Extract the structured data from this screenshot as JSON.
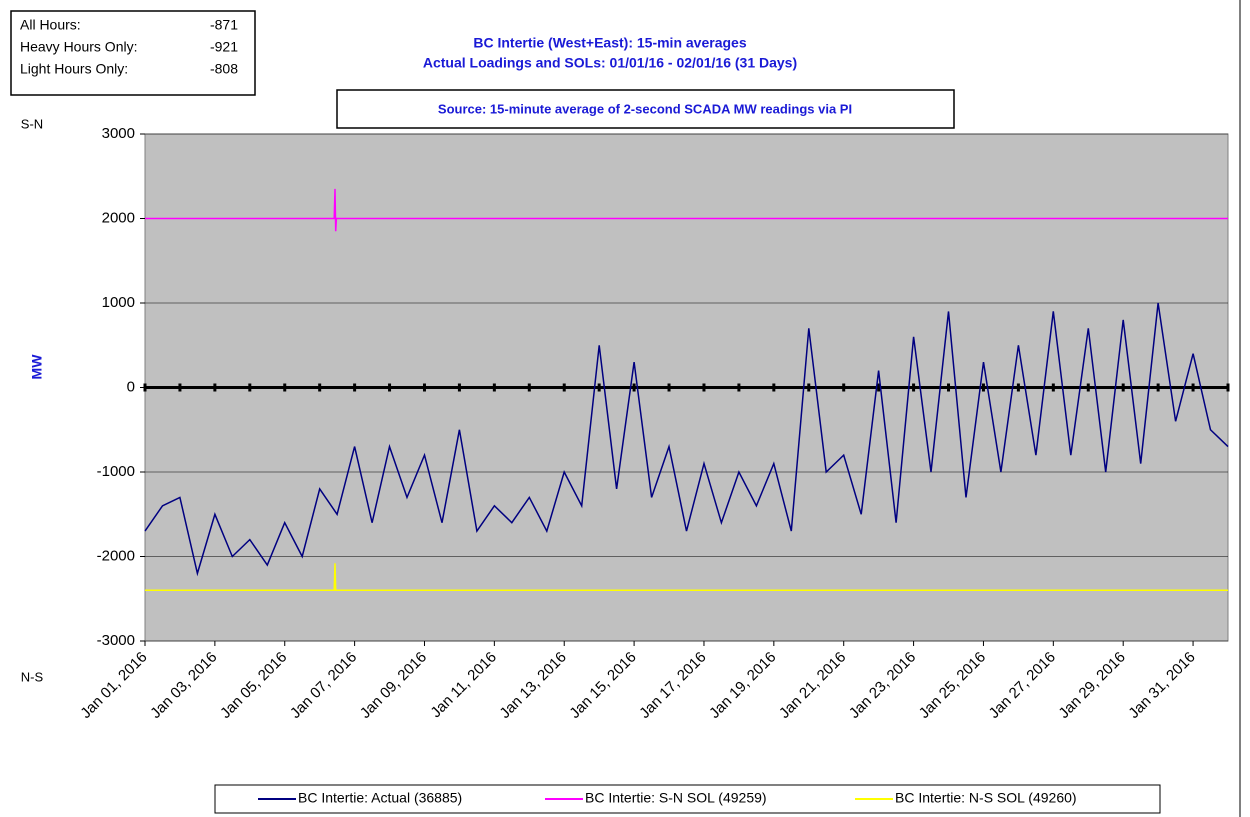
{
  "stats": {
    "rows": [
      [
        "All Hours:",
        "-871"
      ],
      [
        "Heavy Hours Only:",
        "-921"
      ],
      [
        "Light Hours Only:",
        "-808"
      ]
    ]
  },
  "chart_data": {
    "type": "line",
    "title": "BC Intertie (West+East): 15-min averages",
    "subtitle": "Actual Loadings and SOLs:  01/01/16 - 02/01/16 (31 Days)",
    "source": "Source: 15-minute average of 2-second SCADA MW readings via PI",
    "y_label": "MW",
    "y_top_label": "S-N",
    "y_bottom_label": "N-S",
    "ylim": [
      -3000,
      3000
    ],
    "yticks": [
      -3000,
      -2000,
      -1000,
      0,
      1000,
      2000,
      3000
    ],
    "xlim": [
      "2016-01-01 00:00",
      "2016-02-01 00:00"
    ],
    "xticks": [
      {
        "value": "2016-01-01 00:00",
        "label": "Jan 01, 2016"
      },
      {
        "value": "2016-01-03 00:00",
        "label": "Jan 03, 2016"
      },
      {
        "value": "2016-01-05 00:00",
        "label": "Jan 05, 2016"
      },
      {
        "value": "2016-01-07 00:00",
        "label": "Jan 07, 2016"
      },
      {
        "value": "2016-01-09 00:00",
        "label": "Jan 09, 2016"
      },
      {
        "value": "2016-01-11 00:00",
        "label": "Jan 11, 2016"
      },
      {
        "value": "2016-01-13 00:00",
        "label": "Jan 13, 2016"
      },
      {
        "value": "2016-01-15 00:00",
        "label": "Jan 15, 2016"
      },
      {
        "value": "2016-01-17 00:00",
        "label": "Jan 17, 2016"
      },
      {
        "value": "2016-01-19 00:00",
        "label": "Jan 19, 2016"
      },
      {
        "value": "2016-01-21 00:00",
        "label": "Jan 21, 2016"
      },
      {
        "value": "2016-01-23 00:00",
        "label": "Jan 23, 2016"
      },
      {
        "value": "2016-01-25 00:00",
        "label": "Jan 25, 2016"
      },
      {
        "value": "2016-01-27 00:00",
        "label": "Jan 27, 2016"
      },
      {
        "value": "2016-01-29 00:00",
        "label": "Jan 29, 2016"
      },
      {
        "value": "2016-01-31 00:00",
        "label": "Jan 31, 2016"
      }
    ],
    "grid": true,
    "series": [
      {
        "name": "BC Intertie: Actual (36885)",
        "color": "#000080",
        "x": [
          "2016-01-01 00:00",
          "2016-01-01 12:00",
          "2016-01-02 00:00",
          "2016-01-02 12:00",
          "2016-01-03 00:00",
          "2016-01-03 12:00",
          "2016-01-04 00:00",
          "2016-01-04 12:00",
          "2016-01-05 00:00",
          "2016-01-05 12:00",
          "2016-01-06 00:00",
          "2016-01-06 12:00",
          "2016-01-07 00:00",
          "2016-01-07 12:00",
          "2016-01-08 00:00",
          "2016-01-08 12:00",
          "2016-01-09 00:00",
          "2016-01-09 12:00",
          "2016-01-10 00:00",
          "2016-01-10 12:00",
          "2016-01-11 00:00",
          "2016-01-11 12:00",
          "2016-01-12 00:00",
          "2016-01-12 12:00",
          "2016-01-13 00:00",
          "2016-01-13 12:00",
          "2016-01-14 00:00",
          "2016-01-14 12:00",
          "2016-01-15 00:00",
          "2016-01-15 12:00",
          "2016-01-16 00:00",
          "2016-01-16 12:00",
          "2016-01-17 00:00",
          "2016-01-17 12:00",
          "2016-01-18 00:00",
          "2016-01-18 12:00",
          "2016-01-19 00:00",
          "2016-01-19 12:00",
          "2016-01-20 00:00",
          "2016-01-20 12:00",
          "2016-01-21 00:00",
          "2016-01-21 12:00",
          "2016-01-22 00:00",
          "2016-01-22 12:00",
          "2016-01-23 00:00",
          "2016-01-23 12:00",
          "2016-01-24 00:00",
          "2016-01-24 12:00",
          "2016-01-25 00:00",
          "2016-01-25 12:00",
          "2016-01-26 00:00",
          "2016-01-26 12:00",
          "2016-01-27 00:00",
          "2016-01-27 12:00",
          "2016-01-28 00:00",
          "2016-01-28 12:00",
          "2016-01-29 00:00",
          "2016-01-29 12:00",
          "2016-01-30 00:00",
          "2016-01-30 12:00",
          "2016-01-31 00:00",
          "2016-01-31 12:00",
          "2016-02-01 00:00"
        ],
        "values": [
          -1700,
          -1400,
          -1300,
          -2200,
          -1500,
          -2000,
          -1800,
          -2100,
          -1600,
          -2000,
          -1200,
          -1500,
          -700,
          -1600,
          -700,
          -1300,
          -800,
          -1600,
          -500,
          -1700,
          -1400,
          -1600,
          -1300,
          -1700,
          -1000,
          -1400,
          500,
          -1200,
          300,
          -1300,
          -700,
          -1700,
          -900,
          -1600,
          -1000,
          -1400,
          -900,
          -1700,
          700,
          -1000,
          -800,
          -1500,
          200,
          -1600,
          600,
          -1000,
          900,
          -1300,
          300,
          -1000,
          500,
          -800,
          900,
          -800,
          700,
          -1000,
          800,
          -900,
          1000,
          -400,
          400,
          -500,
          -700
        ]
      },
      {
        "name": "BC Intertie: S-N SOL (49259)",
        "color": "#ff00ff",
        "x": [
          "2016-01-01 00:00",
          "2016-01-06 10:00",
          "2016-01-06 10:30",
          "2016-01-06 11:00",
          "2016-01-06 11:30",
          "2016-02-01 00:00"
        ],
        "values": [
          2000,
          2000,
          2350,
          1850,
          2000,
          2000
        ]
      },
      {
        "name": "BC Intertie: N-S SOL (49260)",
        "color": "#ffff00",
        "x": [
          "2016-01-01 00:00",
          "2016-01-06 10:00",
          "2016-01-06 10:30",
          "2016-01-06 11:00",
          "2016-02-01 00:00"
        ],
        "values": [
          -2400,
          -2400,
          -2080,
          -2400,
          -2400
        ]
      }
    ]
  }
}
